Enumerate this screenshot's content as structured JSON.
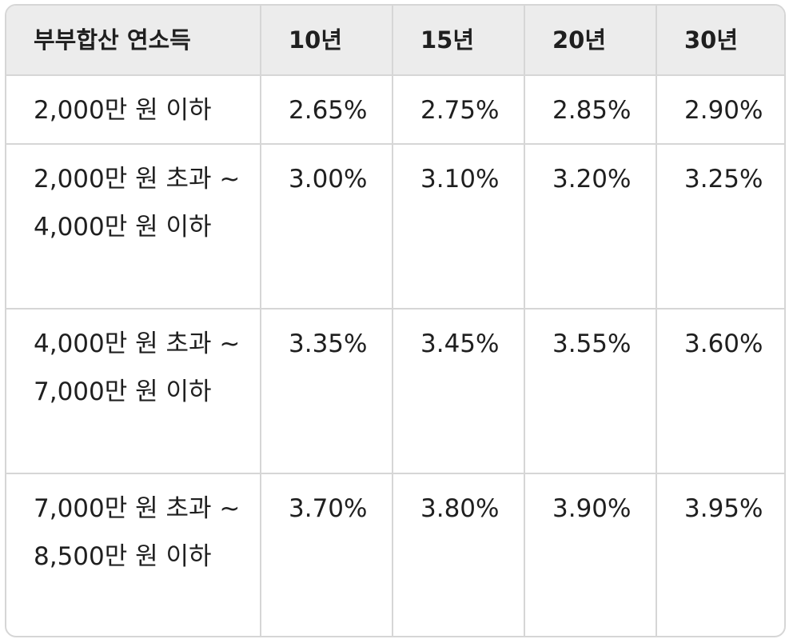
{
  "table": {
    "headers": [
      "부부합산 연소득",
      "10년",
      "15년",
      "20년",
      "30년"
    ],
    "rows": [
      {
        "income": "2,000만 원 이하",
        "rates": [
          "2.65%",
          "2.75%",
          "2.85%",
          "2.90%"
        ]
      },
      {
        "income": "2,000만 원 초과 ~ 4,000만 원 이하",
        "rates": [
          "3.00%",
          "3.10%",
          "3.20%",
          "3.25%"
        ]
      },
      {
        "income": "4,000만 원 초과 ~ 7,000만 원 이하",
        "rates": [
          "3.35%",
          "3.45%",
          "3.55%",
          "3.60%"
        ]
      },
      {
        "income": "7,000만 원 초과 ~ 8,500만 원 이하",
        "rates": [
          "3.70%",
          "3.80%",
          "3.90%",
          "3.95%"
        ]
      }
    ]
  }
}
